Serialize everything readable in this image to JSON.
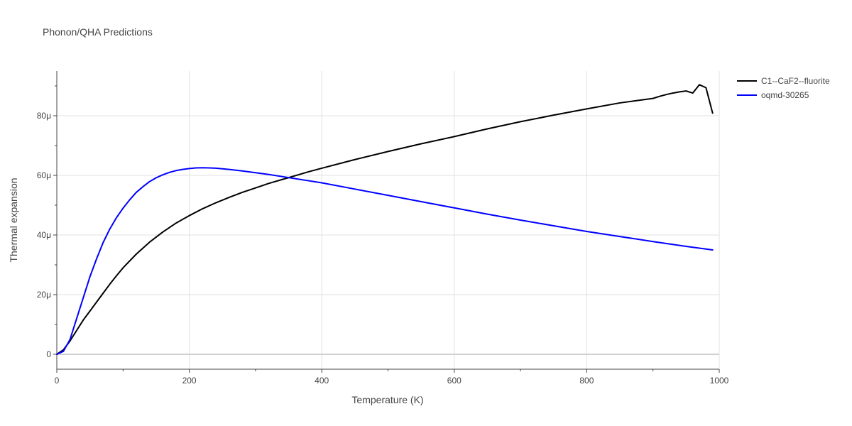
{
  "chart_data": {
    "type": "line",
    "title": "Phonon/QHA Predictions",
    "xlabel": "Temperature (K)",
    "ylabel": "Thermal expansion",
    "xlim": [
      0,
      1000
    ],
    "ylim": [
      -5e-06,
      9.5e-05
    ],
    "x_ticks": [
      {
        "value": 0,
        "label": "0"
      },
      {
        "value": 200,
        "label": "200"
      },
      {
        "value": 400,
        "label": "400"
      },
      {
        "value": 600,
        "label": "600"
      },
      {
        "value": 800,
        "label": "800"
      },
      {
        "value": 1000,
        "label": "1000"
      }
    ],
    "y_ticks": [
      {
        "value": 0,
        "label": "0"
      },
      {
        "value": 2e-05,
        "label": "20μ"
      },
      {
        "value": 4e-05,
        "label": "40μ"
      },
      {
        "value": 6e-05,
        "label": "60μ"
      },
      {
        "value": 8e-05,
        "label": "80μ"
      }
    ],
    "grid": true,
    "legend_position": "top-right",
    "series": [
      {
        "name": "C1--CaF2--fluorite",
        "color": "#000000",
        "x": [
          0,
          10,
          20,
          30,
          40,
          50,
          60,
          70,
          80,
          90,
          100,
          120,
          140,
          160,
          180,
          200,
          220,
          240,
          260,
          280,
          300,
          320,
          340,
          360,
          380,
          400,
          450,
          500,
          550,
          600,
          650,
          700,
          750,
          800,
          850,
          900,
          910,
          920,
          930,
          940,
          950,
          960,
          970,
          980,
          990
        ],
        "y": [
          0,
          1.5e-06,
          4.5e-06,
          8e-06,
          1.15e-05,
          1.45e-05,
          1.75e-05,
          2.05e-05,
          2.35e-05,
          2.63e-05,
          2.9e-05,
          3.36e-05,
          3.76e-05,
          4.1e-05,
          4.4e-05,
          4.65e-05,
          4.88e-05,
          5.08e-05,
          5.26e-05,
          5.43e-05,
          5.58e-05,
          5.73e-05,
          5.86e-05,
          5.99e-05,
          6.12e-05,
          6.24e-05,
          6.53e-05,
          6.8e-05,
          7.06e-05,
          7.3e-05,
          7.56e-05,
          7.8e-05,
          8.02e-05,
          8.23e-05,
          8.43e-05,
          8.58e-05,
          8.65e-05,
          8.71e-05,
          8.76e-05,
          8.8e-05,
          8.83e-05,
          8.76e-05,
          9.04e-05,
          8.94e-05,
          8.09e-05
        ]
      },
      {
        "name": "oqmd-30265",
        "color": "#0000ff",
        "x": [
          0,
          10,
          20,
          30,
          40,
          50,
          60,
          70,
          80,
          90,
          100,
          110,
          120,
          130,
          140,
          150,
          160,
          170,
          180,
          190,
          200,
          210,
          220,
          230,
          240,
          250,
          260,
          280,
          300,
          320,
          340,
          360,
          380,
          400,
          450,
          500,
          550,
          600,
          650,
          700,
          750,
          800,
          850,
          900,
          950,
          990
        ],
        "y": [
          0,
          1e-06,
          5e-06,
          1.2e-05,
          1.9e-05,
          2.6e-05,
          3.2e-05,
          3.75e-05,
          4.2e-05,
          4.58e-05,
          4.9e-05,
          5.18e-05,
          5.43e-05,
          5.62e-05,
          5.79e-05,
          5.92e-05,
          6.02e-05,
          6.1e-05,
          6.16e-05,
          6.2e-05,
          6.23e-05,
          6.25e-05,
          6.255e-05,
          6.25e-05,
          6.24e-05,
          6.22e-05,
          6.2e-05,
          6.15e-05,
          6.09e-05,
          6.03e-05,
          5.96e-05,
          5.89e-05,
          5.82e-05,
          5.75e-05,
          5.54e-05,
          5.33e-05,
          5.12e-05,
          4.91e-05,
          4.7e-05,
          4.5e-05,
          4.31e-05,
          4.12e-05,
          3.95e-05,
          3.78e-05,
          3.62e-05,
          3.5e-05
        ]
      }
    ]
  }
}
